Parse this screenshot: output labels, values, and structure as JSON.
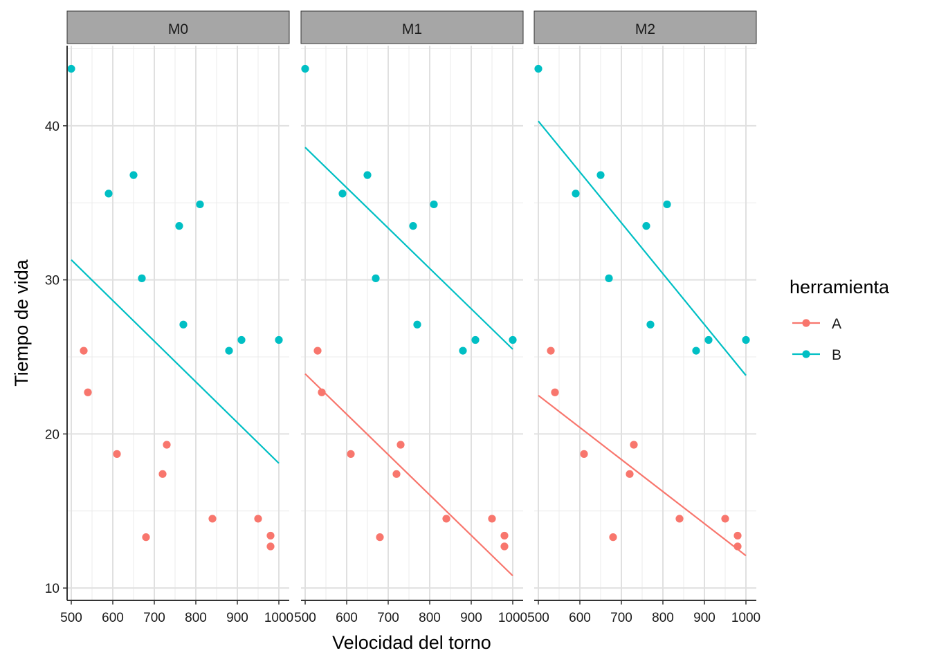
{
  "chart_data": {
    "type": "scatter",
    "xlabel": "Velocidad del torno",
    "ylabel": "Tiempo de vida",
    "xlim": [
      490,
      1025
    ],
    "ylim": [
      9.2,
      45.2
    ],
    "x_ticks": [
      500,
      600,
      700,
      800,
      900,
      1000
    ],
    "y_ticks": [
      10,
      20,
      30,
      40
    ],
    "grid": true,
    "legend": {
      "title": "herramienta",
      "position": "right",
      "entries": [
        {
          "name": "A",
          "color": "#F8766D"
        },
        {
          "name": "B",
          "color": "#00BFC4"
        }
      ]
    },
    "colors": {
      "A": "#F8766D",
      "B": "#00BFC4"
    },
    "points": {
      "A": {
        "x": [
          530,
          540,
          610,
          680,
          720,
          730,
          840,
          950,
          980,
          980
        ],
        "y": [
          25.4,
          22.7,
          18.7,
          13.3,
          17.4,
          19.3,
          14.5,
          14.5,
          13.4,
          12.7
        ]
      },
      "B": {
        "x": [
          500,
          590,
          650,
          670,
          760,
          770,
          810,
          880,
          910,
          1000
        ],
        "y": [
          43.7,
          35.6,
          36.8,
          30.1,
          33.5,
          27.1,
          34.9,
          25.4,
          26.1,
          26.1
        ]
      }
    },
    "panels": [
      {
        "label": "M0",
        "lines": [
          {
            "series": "B",
            "x": [
              500,
              1000
            ],
            "y": [
              31.3,
              18.1
            ]
          }
        ]
      },
      {
        "label": "M1",
        "lines": [
          {
            "series": "A",
            "x": [
              500,
              1000
            ],
            "y": [
              23.9,
              10.8
            ]
          },
          {
            "series": "B",
            "x": [
              500,
              1000
            ],
            "y": [
              38.6,
              25.5
            ]
          }
        ]
      },
      {
        "label": "M2",
        "lines": [
          {
            "series": "A",
            "x": [
              500,
              1000
            ],
            "y": [
              22.5,
              12.1
            ]
          },
          {
            "series": "B",
            "x": [
              500,
              1000
            ],
            "y": [
              40.3,
              23.8
            ]
          }
        ]
      }
    ]
  }
}
